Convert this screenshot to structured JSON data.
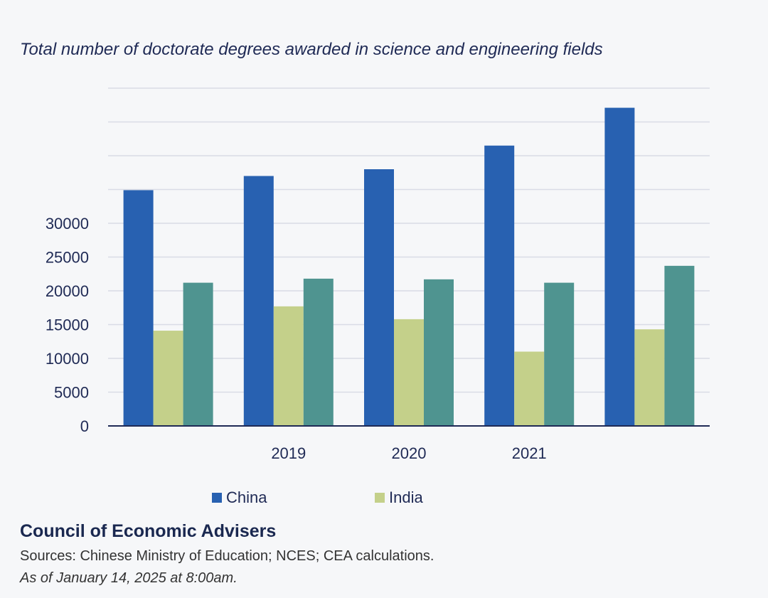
{
  "chart_data": {
    "type": "bar",
    "title": "Total number of doctorate degrees awarded in science and engineering fields",
    "categories": [
      "",
      "2019",
      "2020",
      "2021",
      ""
    ],
    "series": [
      {
        "name": "China",
        "color": "#2861b1",
        "values": [
          34900,
          37000,
          38000,
          41500,
          47100
        ]
      },
      {
        "name": "India",
        "color": "#c4d08a",
        "values": [
          14100,
          17700,
          15800,
          11000,
          14300
        ]
      },
      {
        "name": "",
        "color": "#4f9490",
        "values": [
          21200,
          21800,
          21700,
          21200,
          23700
        ]
      }
    ],
    "y_ticks": [
      "0",
      "5000",
      "10000",
      "15000",
      "20000",
      "25000",
      "30000"
    ],
    "ylim": [
      0,
      50000
    ],
    "grid": true,
    "legend_position": "bottom"
  },
  "footer": {
    "organization": "Council of Economic Advisers",
    "sources": "Sources: Chinese Ministry of Education; NCES; CEA calculations.",
    "as_of": "As of January 14, 2025 at 8:00am."
  }
}
